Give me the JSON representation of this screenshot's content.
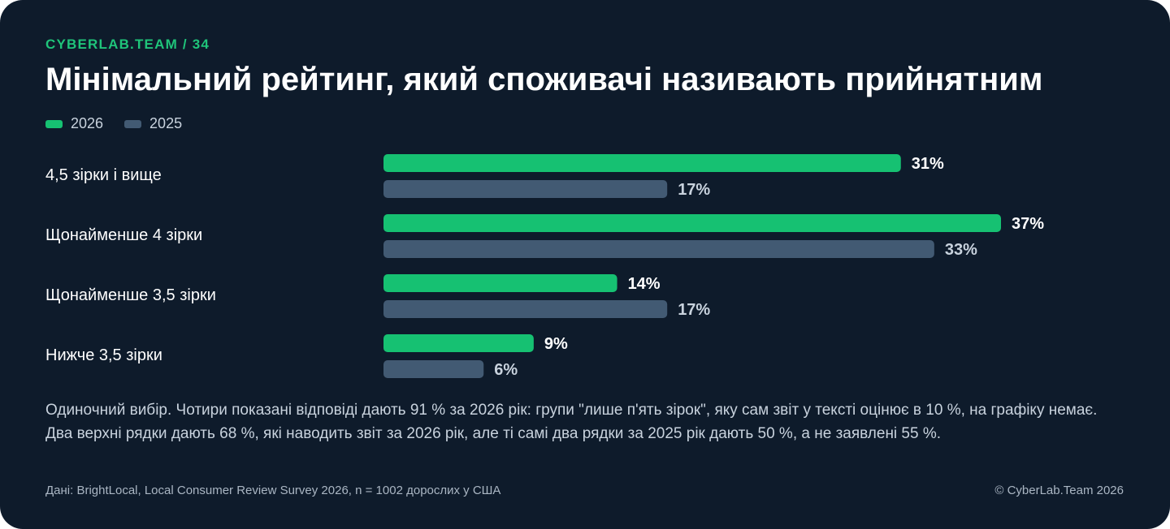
{
  "header": {
    "kicker": "CYBERLAB.TEAM / 34",
    "title": "Мінімальний рейтинг, який споживачі називають прийнятним"
  },
  "legend": {
    "items": [
      {
        "label": "2026",
        "color": "#16c172"
      },
      {
        "label": "2025",
        "color": "#425a73"
      }
    ]
  },
  "chart_data": {
    "type": "bar",
    "orientation": "horizontal",
    "categories": [
      "4,5 зірки і вище",
      "Щонайменше 4 зірки",
      "Щонайменше 3,5 зірки",
      "Нижче 3,5 зірки"
    ],
    "series": [
      {
        "name": "2026",
        "values": [
          31,
          37,
          14,
          9
        ],
        "labels": [
          "31%",
          "37%",
          "14%",
          "9%"
        ],
        "color": "#16c172",
        "label_color": "#ffffff"
      },
      {
        "name": "2025",
        "values": [
          17,
          33,
          17,
          6
        ],
        "labels": [
          "17%",
          "33%",
          "17%",
          "6%"
        ],
        "color": "#425a73",
        "label_color": "#c8d2dd"
      }
    ],
    "xlim": [
      0,
      37
    ],
    "grid": false,
    "legend_position": "top-left"
  },
  "footer": {
    "note": "Одиночний вибір. Чотири показані відповіді дають 91 % за 2026 рік: групи \"лише п'ять зірок\", яку сам звіт у тексті оцінює в 10 %, на графіку немає. Два верхні рядки дають 68 %, які наводить звіт за 2026 рік, але ті самі два рядки за 2025 рік дають 50 %, а не заявлені 55 %.",
    "source": "Дані: BrightLocal, Local Consumer Review Survey 2026, n = 1002 дорослих у США",
    "copyright": "© CyberLab.Team  2026"
  }
}
